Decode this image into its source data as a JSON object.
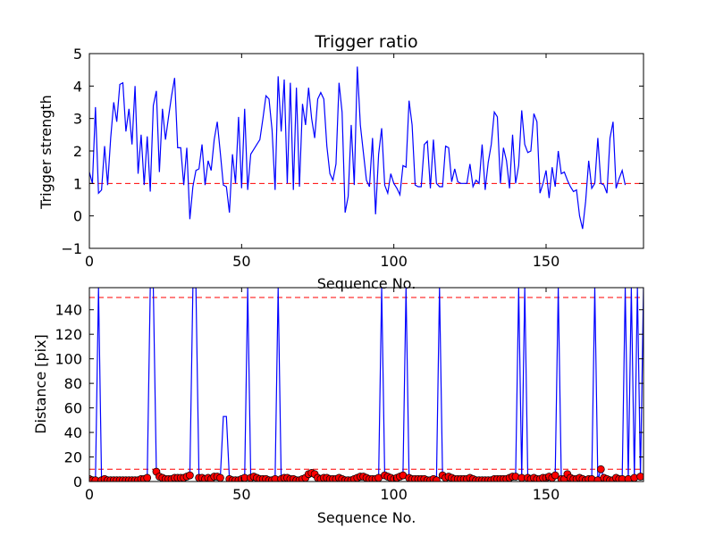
{
  "colors": {
    "line": "#0000ff",
    "threshold": "#ff0000",
    "marker_fill": "#ff0000",
    "marker_edge": "#000000"
  },
  "chart_data": [
    {
      "type": "line",
      "title": "Trigger ratio",
      "xlabel": "Sequence No.",
      "ylabel": "Trigger strength",
      "xlim": [
        0,
        182
      ],
      "ylim": [
        -1,
        5
      ],
      "xticks": [
        0,
        50,
        100,
        150
      ],
      "yticks": [
        -1,
        0,
        1,
        2,
        3,
        4,
        5
      ],
      "grid": false,
      "threshold": 1.0,
      "series": [
        {
          "values": [
            1.35,
            1.0,
            3.35,
            0.7,
            0.8,
            2.15,
            0.95,
            2.4,
            3.5,
            2.9,
            4.05,
            4.1,
            2.6,
            3.3,
            2.2,
            4.0,
            1.3,
            2.5,
            0.95,
            2.45,
            0.75,
            3.4,
            3.85,
            1.35,
            3.3,
            2.35,
            3.05,
            3.7,
            4.25,
            2.1,
            2.1,
            0.95,
            2.1,
            -0.1,
            0.9,
            1.4,
            1.45,
            2.2,
            0.95,
            1.7,
            1.4,
            2.35,
            2.9,
            1.95,
            0.95,
            0.9,
            0.1,
            1.9,
            1.0,
            3.05,
            0.85,
            3.3,
            0.8,
            1.9,
            2.05,
            2.2,
            2.35,
            3.0,
            3.7,
            3.6,
            2.65,
            0.8,
            4.3,
            2.6,
            4.2,
            1.0,
            4.1,
            0.8,
            3.95,
            0.9,
            3.45,
            2.8,
            3.95,
            3.0,
            2.4,
            3.6,
            3.8,
            3.6,
            2.15,
            1.3,
            1.1,
            1.6,
            4.1,
            3.2,
            0.1,
            0.6,
            2.8,
            0.95,
            4.6,
            2.8,
            1.95,
            1.1,
            0.9,
            2.4,
            0.05,
            1.9,
            2.7,
            0.95,
            0.7,
            1.3,
            1.0,
            0.85,
            0.65,
            1.55,
            1.5,
            3.55,
            2.8,
            0.95,
            0.9,
            0.9,
            2.2,
            2.3,
            0.85,
            2.35,
            1.0,
            0.9,
            0.9,
            2.15,
            2.1,
            1.05,
            1.45,
            1.05,
            1.0,
            1.0,
            1.0,
            1.6,
            0.9,
            1.1,
            1.0,
            2.2,
            0.8,
            1.65,
            2.2,
            3.2,
            3.05,
            1.0,
            2.1,
            1.7,
            0.85,
            2.5,
            1.0,
            1.55,
            3.25,
            2.2,
            1.95,
            2.0,
            3.15,
            2.9,
            0.7,
            1.0,
            1.4,
            0.55,
            1.5,
            0.9,
            2.0,
            1.3,
            1.35,
            1.1,
            0.9,
            0.75,
            0.8,
            0.0,
            -0.4,
            0.45,
            1.7,
            0.85,
            1.0,
            2.4,
            1.0,
            0.95,
            0.7,
            2.4,
            2.9,
            0.85,
            1.15,
            1.4,
            0.95
          ]
        }
      ]
    },
    {
      "type": "line",
      "title": "",
      "xlabel": "Sequence No.",
      "ylabel": "Distance [pix]",
      "xlim": [
        0,
        182
      ],
      "ylim": [
        0,
        158
      ],
      "xticks": [
        0,
        50,
        100,
        150
      ],
      "yticks": [
        0,
        20,
        40,
        60,
        80,
        100,
        120,
        140
      ],
      "grid": false,
      "thresholds": [
        150,
        10
      ],
      "series": [
        {
          "values": [
            2,
            1,
            1,
            158,
            1,
            2,
            1,
            1,
            1,
            1,
            1,
            1,
            1,
            1,
            1,
            1,
            1,
            2,
            2,
            3,
            158,
            158,
            8,
            4,
            3,
            2,
            2,
            2,
            3,
            3,
            3,
            3,
            4,
            5,
            158,
            158,
            3,
            3,
            2,
            3,
            2,
            4,
            4,
            3,
            53,
            53,
            2,
            1,
            1,
            1,
            2,
            3,
            158,
            3,
            4,
            3,
            2,
            2,
            2,
            1,
            1,
            2,
            158,
            2,
            3,
            3,
            2,
            2,
            1,
            1,
            2,
            3,
            6,
            7,
            6,
            3,
            2,
            3,
            3,
            2,
            2,
            2,
            3,
            2,
            1,
            1,
            1,
            2,
            3,
            4,
            4,
            3,
            2,
            2,
            2,
            3,
            158,
            5,
            4,
            3,
            2,
            3,
            4,
            5,
            158,
            3,
            2,
            2,
            2,
            2,
            2,
            1,
            1,
            2,
            1,
            158,
            5,
            3,
            4,
            3,
            2,
            2,
            2,
            2,
            2,
            3,
            2,
            1,
            1,
            1,
            1,
            1,
            1,
            2,
            2,
            2,
            2,
            2,
            3,
            4,
            4,
            158,
            3,
            158,
            3,
            2,
            3,
            2,
            2,
            3,
            3,
            4,
            3,
            5,
            158,
            2,
            2,
            6,
            3,
            2,
            2,
            3,
            2,
            1,
            2,
            2,
            158,
            1,
            10,
            3,
            2,
            1,
            1,
            3,
            2,
            2,
            158,
            2,
            158,
            3,
            158,
            4,
            158
          ]
        }
      ]
    }
  ]
}
